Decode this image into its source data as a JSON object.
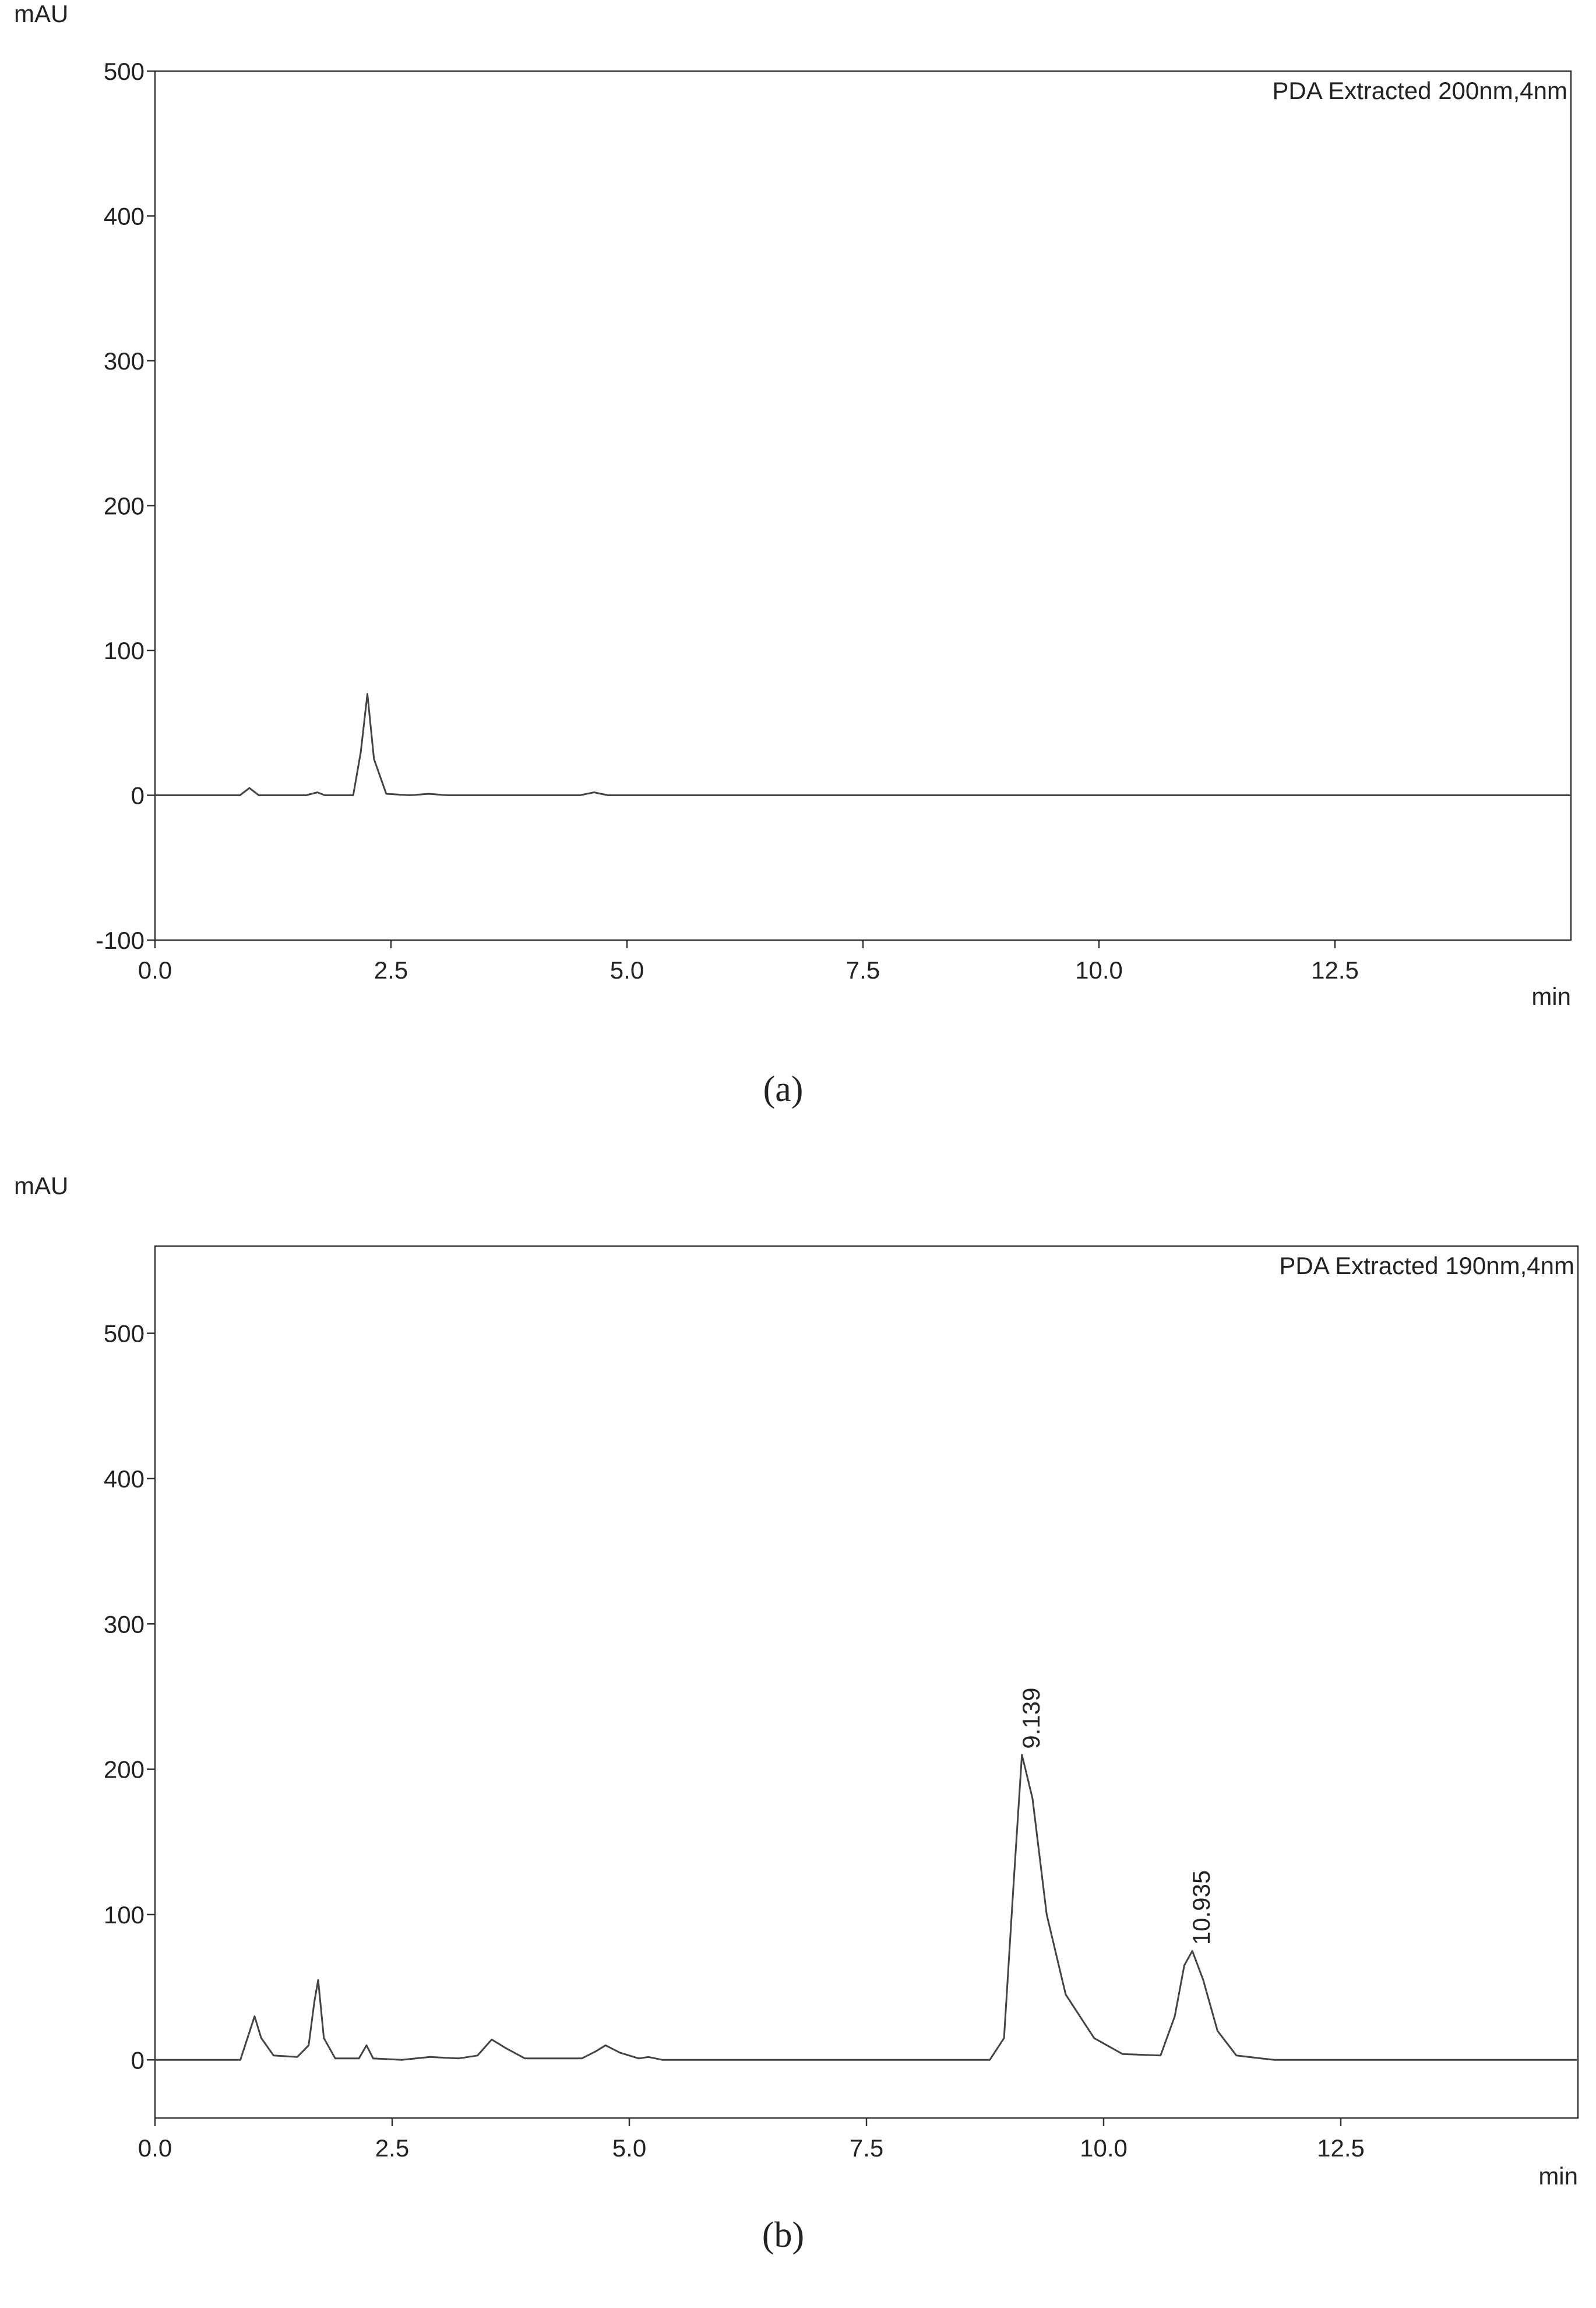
{
  "chart_data": [
    {
      "type": "line",
      "annotation": "PDA Extracted 200nm,4nm",
      "ylabel": "mAU",
      "xlabel": "min",
      "panel_label": "(a)",
      "color": "#444444",
      "x": [
        0,
        0.9,
        1.0,
        1.1,
        1.6,
        1.72,
        1.8,
        2.1,
        2.18,
        2.25,
        2.32,
        2.45,
        2.7,
        2.9,
        3.1,
        4.5,
        4.65,
        4.8,
        5.5,
        15
      ],
      "values": [
        0,
        0,
        5,
        0,
        0,
        2,
        0,
        0,
        30,
        70,
        25,
        1,
        0,
        1,
        0,
        0,
        2,
        0,
        0,
        0
      ],
      "xlim": [
        0,
        15
      ],
      "ylim": [
        -100,
        500
      ],
      "xticks": [
        {
          "value": 0,
          "label": "0.0"
        },
        2.5,
        {
          "value": 5,
          "label": "5.0"
        },
        7.5,
        {
          "value": 10,
          "label": "10.0"
        },
        12.5
      ],
      "yticks": [
        -100,
        0,
        100,
        200,
        300,
        400,
        500
      ]
    },
    {
      "type": "line",
      "annotation": "PDA Extracted 190nm,4nm",
      "ylabel": "mAU",
      "xlabel": "min",
      "panel_label": "(b)",
      "color": "#444444",
      "x": [
        0,
        0.9,
        1.0,
        1.05,
        1.12,
        1.25,
        1.5,
        1.62,
        1.68,
        1.72,
        1.78,
        1.9,
        2.15,
        2.23,
        2.3,
        2.6,
        2.9,
        3.2,
        3.4,
        3.55,
        3.7,
        3.9,
        4.5,
        4.65,
        4.75,
        4.9,
        5.1,
        5.2,
        5.35,
        6,
        8.8,
        8.95,
        9.05,
        9.139,
        9.25,
        9.4,
        9.6,
        9.9,
        10.2,
        10.6,
        10.75,
        10.85,
        10.935,
        11.05,
        11.2,
        11.4,
        11.8,
        15
      ],
      "values": [
        0,
        0,
        20,
        30,
        15,
        3,
        2,
        10,
        40,
        55,
        15,
        1,
        1,
        10,
        1,
        0,
        2,
        1,
        3,
        14,
        8,
        1,
        1,
        6,
        10,
        5,
        1,
        2,
        0,
        0,
        0,
        15,
        120,
        210,
        180,
        100,
        45,
        15,
        4,
        3,
        30,
        65,
        75,
        55,
        20,
        3,
        0,
        0
      ],
      "peak_times": [
        9.139,
        10.935
      ],
      "xlim": [
        0,
        15
      ],
      "ylim": [
        -40,
        560
      ],
      "xticks": [
        {
          "value": 0,
          "label": "0.0"
        },
        2.5,
        {
          "value": 5,
          "label": "5.0"
        },
        7.5,
        {
          "value": 10,
          "label": "10.0"
        },
        12.5
      ],
      "yticks": [
        0,
        100,
        200,
        300,
        400,
        500
      ]
    }
  ]
}
